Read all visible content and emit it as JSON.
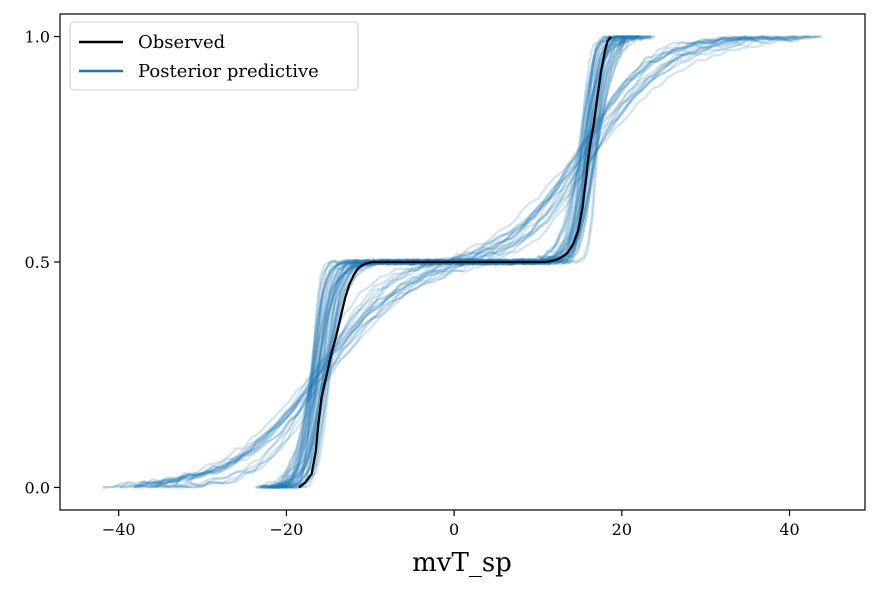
{
  "chart_data": {
    "type": "line",
    "title": "",
    "xlabel": "mvT_sp",
    "ylabel": "",
    "xlim": [
      -47,
      49
    ],
    "ylim": [
      -0.05,
      1.05
    ],
    "x_ticks": [
      -40,
      -20,
      0,
      20,
      40
    ],
    "x_tick_labels": [
      "−40",
      "−20",
      "0",
      "20",
      "40"
    ],
    "y_ticks": [
      0.0,
      0.5,
      1.0
    ],
    "y_tick_labels": [
      "0.0",
      "0.5",
      "1.0"
    ],
    "grid": false,
    "legend": {
      "placement": "top-left",
      "entries": [
        {
          "label": "Observed",
          "color": "#000000"
        },
        {
          "label": "Posterior predictive",
          "color": "#1f77b4"
        }
      ]
    },
    "series": [
      {
        "name": "Observed",
        "color": "#000000",
        "x": [
          -18.5,
          -17.8,
          -17.0,
          -16.5,
          -16.2,
          -15.8,
          -15.2,
          -14.6,
          -14.0,
          -13.5,
          -13.0,
          -12.5,
          -12.0,
          -11.5,
          -11.0,
          -10.5,
          -9.8,
          -9.0,
          -8.0,
          -6.0,
          -3.0,
          0.0,
          3.0,
          6.0,
          9.0,
          11.0,
          12.0,
          12.8,
          13.5,
          14.2,
          14.8,
          15.3,
          15.7,
          16.0,
          16.3,
          16.6,
          16.9,
          17.2,
          17.5,
          17.8,
          18.0,
          18.3,
          18.7
        ],
        "y": [
          0.0,
          0.01,
          0.03,
          0.08,
          0.14,
          0.2,
          0.25,
          0.3,
          0.34,
          0.38,
          0.42,
          0.45,
          0.47,
          0.485,
          0.492,
          0.497,
          0.5,
          0.5,
          0.5,
          0.5,
          0.5,
          0.5,
          0.5,
          0.5,
          0.5,
          0.5,
          0.504,
          0.51,
          0.52,
          0.54,
          0.57,
          0.62,
          0.68,
          0.73,
          0.77,
          0.8,
          0.84,
          0.88,
          0.92,
          0.95,
          0.97,
          0.99,
          1.0
        ]
      }
    ],
    "posterior_predictive": {
      "color": "#1f77b4",
      "line_opacity": 0.2,
      "num_draws": 60,
      "x_range_observed": [
        -43,
        44
      ],
      "mode_left": -16,
      "mode_right": 16
    }
  }
}
